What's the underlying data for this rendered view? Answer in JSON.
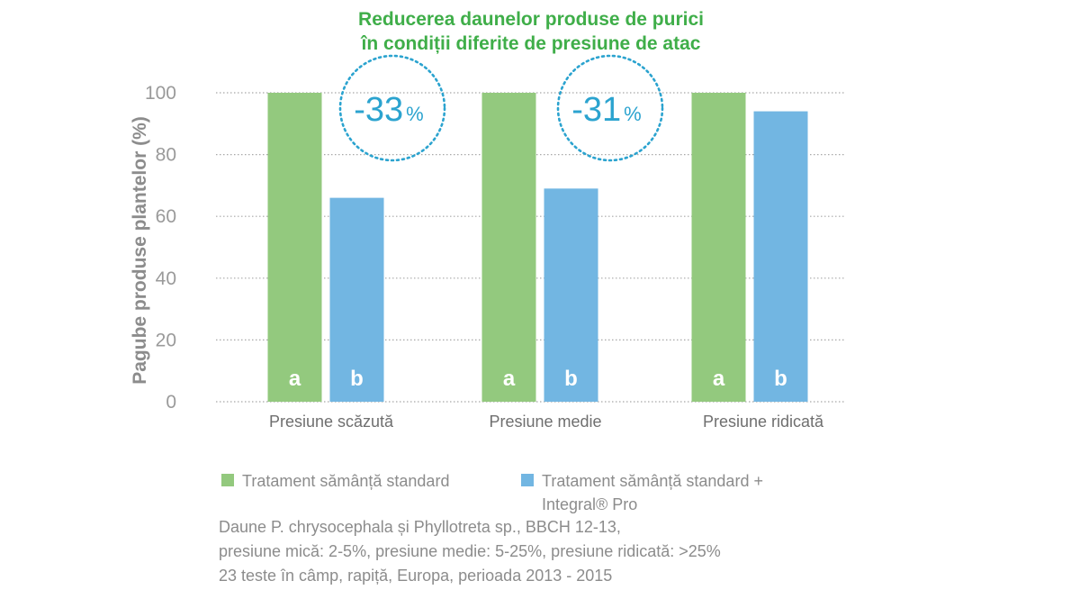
{
  "chart_data": {
    "type": "bar",
    "title": [
      "Reducerea daunelor produse de purici",
      "în condiții diferite de presiune de atac"
    ],
    "ylabel": "Pagube produse plantelor (%)",
    "xlabel": "",
    "ylim": [
      0,
      100
    ],
    "yticks": [
      "0",
      "20",
      "40",
      "60",
      "80",
      "100"
    ],
    "categories": [
      "Presiune scăzută",
      "Presiune medie",
      "Presiune ridicată"
    ],
    "series": [
      {
        "name": "Tratament sămânță standard",
        "values": [
          100,
          100,
          100
        ],
        "color": "#93c97e",
        "bar_label": "a"
      },
      {
        "name": "Tratament sămânță standard + Integral® Pro",
        "values": [
          66,
          69,
          94
        ],
        "color": "#72b6e2",
        "bar_label": "b"
      }
    ],
    "annotations": [
      {
        "category": "Presiune scăzută",
        "value": "-33",
        "unit": "%"
      },
      {
        "category": "Presiune medie",
        "value": "-31",
        "unit": "%"
      }
    ],
    "grid": "horizontal dotted",
    "legend_position": "bottom",
    "title_color": "#3fae49",
    "accent_color": "#2ba3cf"
  },
  "legend": {
    "item1": "Tratament sămânță standard",
    "item2_line1": "Tratament sămânță standard +",
    "item2_line2": "Integral® Pro"
  },
  "notes": [
    "Daune P. chrysocephala și Phyllotreta sp., BBCH 12-13,",
    "presiune mică: 2-5%, presiune medie: 5-25%, presiune ridicată: >25%",
    "23 teste în câmp, rapiță, Europa, perioada 2013 - 2015"
  ]
}
